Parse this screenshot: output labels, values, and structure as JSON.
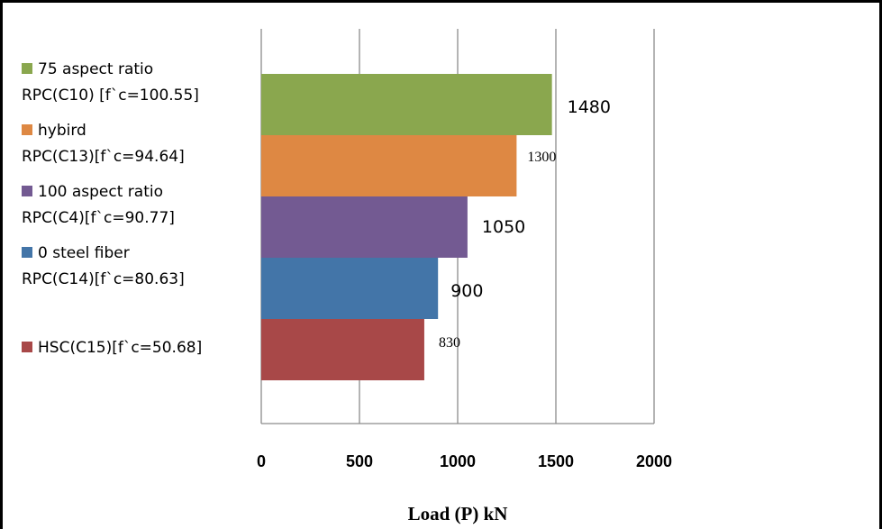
{
  "chart_data": {
    "type": "bar",
    "orientation": "horizontal",
    "xlabel": "Load (P) kN",
    "xlim": [
      0,
      2000
    ],
    "xticks": [
      "0",
      "500",
      "1000",
      "1500",
      "2000"
    ],
    "grid": "vertical",
    "bars": [
      {
        "label_line1": "75 aspect ratio",
        "label_line2": "RPC(C10) [f`c=100.55]",
        "value": 1480,
        "value_label": "1480",
        "color": "#8AA74E",
        "label_font": "sans"
      },
      {
        "label_line1": "hybird",
        "label_line2": "RPC(C13)[f`c=94.64]",
        "value": 1300,
        "value_label": "1300",
        "color": "#DE8843",
        "label_font": "serif"
      },
      {
        "label_line1": "100 aspect ratio",
        "label_line2": "RPC(C4)[f`c=90.77]",
        "value": 1050,
        "value_label": "1050",
        "color": "#735A92",
        "label_font": "sans"
      },
      {
        "label_line1": "0 steel fiber",
        "label_line2": "RPC(C14)[f`c=80.63]",
        "value": 900,
        "value_label": "900",
        "color": "#4375A8",
        "label_font": "sans"
      },
      {
        "label_line1": "HSC(C15)[f`c=50.68]",
        "label_line2": "",
        "value": 830,
        "value_label": "830",
        "color": "#A84848",
        "label_font": "serif"
      }
    ]
  }
}
